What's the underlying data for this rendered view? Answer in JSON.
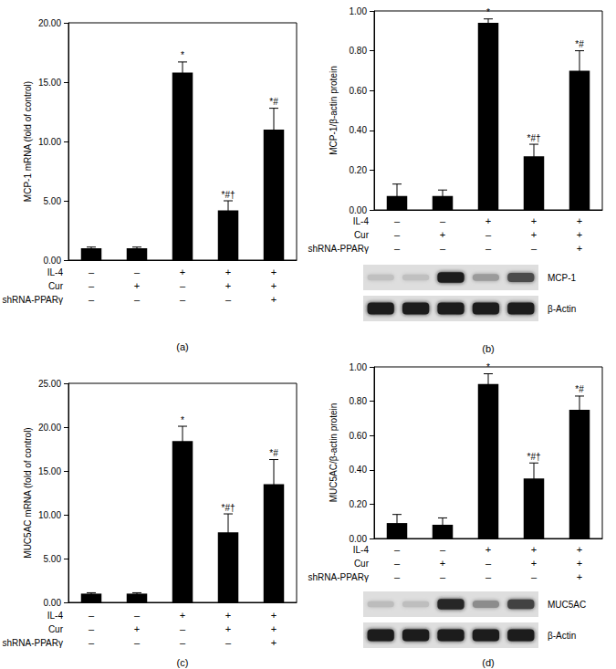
{
  "chart_data": [
    {
      "type": "bar",
      "panel": "(a)",
      "y_label": "MCP-1 mRNA (fold of control)",
      "values": [
        1.0,
        1.0,
        15.8,
        4.2,
        11.0
      ],
      "errors": [
        0.1,
        0.1,
        0.9,
        0.8,
        1.8
      ],
      "annotations": [
        null,
        null,
        "*",
        "*#†",
        "*#"
      ],
      "color": "#000000",
      "grid": false,
      "tick_labels": "y",
      "ylim": [
        0,
        20
      ],
      "yticks": [
        {
          "value": 0,
          "label": "0.00"
        },
        {
          "value": 5,
          "label": "5.00"
        },
        {
          "value": 10,
          "label": "10.00"
        },
        {
          "value": 15,
          "label": "15.00"
        },
        {
          "value": 20,
          "label": "20.00"
        }
      ],
      "conditions": [
        {
          "name": "IL-4",
          "values": [
            "–",
            "–",
            "+",
            "+",
            "+"
          ]
        },
        {
          "name": "Cur",
          "values": [
            "–",
            "+",
            "–",
            "+",
            "+"
          ]
        },
        {
          "name": "shRNA-PPARγ",
          "values": [
            "–",
            "–",
            "–",
            "–",
            "+"
          ]
        }
      ]
    },
    {
      "type": "bar",
      "panel": "(b)",
      "y_label": "MCP-1/β-actin protein",
      "values": [
        0.07,
        0.07,
        0.94,
        0.27,
        0.7
      ],
      "errors": [
        0.06,
        0.03,
        0.02,
        0.06,
        0.1
      ],
      "annotations": [
        null,
        null,
        "*",
        "*#†",
        "*#"
      ],
      "color": "#000000",
      "grid": false,
      "tick_labels": "y",
      "ylim": [
        0,
        1.0
      ],
      "yticks": [
        {
          "value": 0,
          "label": "0.00"
        },
        {
          "value": 0.2,
          "label": "0.20"
        },
        {
          "value": 0.4,
          "label": "0.40"
        },
        {
          "value": 0.6,
          "label": "0.60"
        },
        {
          "value": 0.8,
          "label": "0.80"
        },
        {
          "value": 1.0,
          "label": "1.00"
        }
      ],
      "conditions": [
        {
          "name": "IL-4",
          "values": [
            "–",
            "–",
            "+",
            "+",
            "+"
          ]
        },
        {
          "name": "Cur",
          "values": [
            "–",
            "+",
            "–",
            "+",
            "+"
          ]
        },
        {
          "name": "shRNA-PPARγ",
          "values": [
            "–",
            "–",
            "–",
            "–",
            "+"
          ]
        }
      ],
      "blot": [
        {
          "label": "MCP-1"
        },
        {
          "label": "β-Actin"
        }
      ]
    },
    {
      "type": "bar",
      "panel": "(c)",
      "y_label": "MUC5AC mRNA (fold of control)",
      "values": [
        1.0,
        1.0,
        18.4,
        8.0,
        13.5
      ],
      "errors": [
        0.1,
        0.1,
        1.7,
        2.1,
        2.8
      ],
      "annotations": [
        null,
        null,
        "*",
        "*#†",
        "*#"
      ],
      "color": "#000000",
      "grid": false,
      "tick_labels": "y",
      "ylim": [
        0,
        25
      ],
      "yticks": [
        {
          "value": 0,
          "label": "0.00"
        },
        {
          "value": 5,
          "label": "5.00"
        },
        {
          "value": 10,
          "label": "10.00"
        },
        {
          "value": 15,
          "label": "15.00"
        },
        {
          "value": 20,
          "label": "20.00"
        },
        {
          "value": 25,
          "label": "25.00"
        }
      ],
      "conditions": [
        {
          "name": "IL-4",
          "values": [
            "–",
            "–",
            "+",
            "+",
            "+"
          ]
        },
        {
          "name": "Cur",
          "values": [
            "–",
            "+",
            "–",
            "+",
            "+"
          ]
        },
        {
          "name": "shRNA-PPARγ",
          "values": [
            "–",
            "–",
            "–",
            "–",
            "+"
          ]
        }
      ]
    },
    {
      "type": "bar",
      "panel": "(d)",
      "y_label": "MUC5AC/β-actin protein",
      "values": [
        0.09,
        0.08,
        0.9,
        0.35,
        0.75
      ],
      "errors": [
        0.05,
        0.04,
        0.06,
        0.09,
        0.08
      ],
      "annotations": [
        null,
        null,
        "*",
        "*#†",
        "*#"
      ],
      "color": "#000000",
      "grid": false,
      "tick_labels": "y",
      "ylim": [
        0,
        1.0
      ],
      "yticks": [
        {
          "value": 0,
          "label": "0.00"
        },
        {
          "value": 0.2,
          "label": "0.20"
        },
        {
          "value": 0.4,
          "label": "0.40"
        },
        {
          "value": 0.6,
          "label": "0.60"
        },
        {
          "value": 0.8,
          "label": "0.80"
        },
        {
          "value": 1.0,
          "label": "1.00"
        }
      ],
      "conditions": [
        {
          "name": "IL-4",
          "values": [
            "–",
            "–",
            "+",
            "+",
            "+"
          ]
        },
        {
          "name": "Cur",
          "values": [
            "–",
            "+",
            "–",
            "+",
            "+"
          ]
        },
        {
          "name": "shRNA-PPARγ",
          "values": [
            "–",
            "–",
            "–",
            "–",
            "+"
          ]
        }
      ],
      "blot": [
        {
          "label": "MUC5AC"
        },
        {
          "label": "β-Actin"
        }
      ]
    }
  ]
}
